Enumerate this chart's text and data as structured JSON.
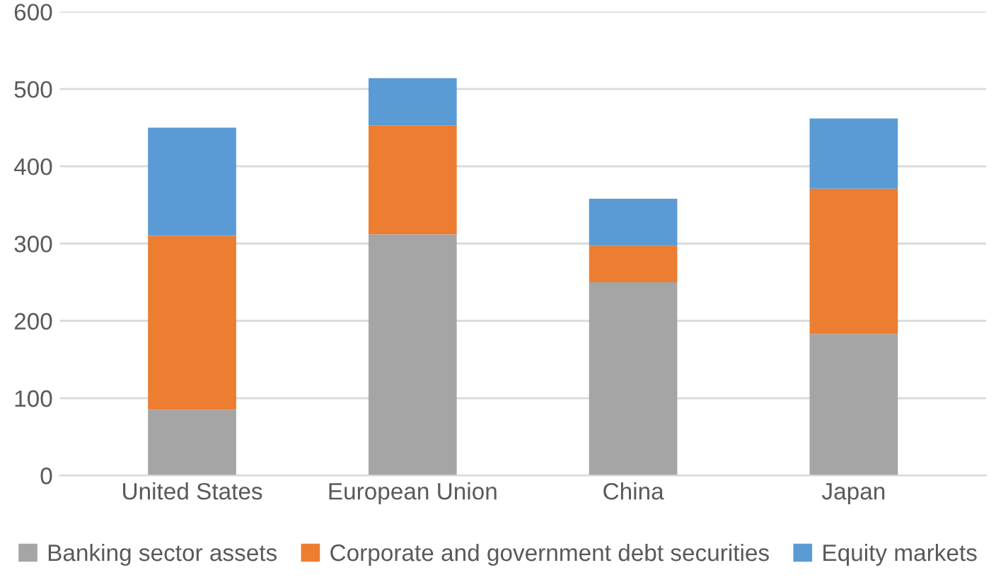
{
  "chart_data": {
    "type": "bar",
    "stacked": true,
    "categories": [
      "United States",
      "European Union",
      "China",
      "Japan"
    ],
    "series": [
      {
        "name": "Banking sector assets",
        "color": "#a5a5a5",
        "values": [
          85,
          312,
          250,
          183
        ]
      },
      {
        "name": "Corporate and government debt securities",
        "color": "#ed7d31",
        "values": [
          225,
          141,
          47,
          188
        ]
      },
      {
        "name": "Equity markets",
        "color": "#5b9bd5",
        "values": [
          140,
          61,
          61,
          91
        ]
      }
    ],
    "ylim": [
      0,
      600
    ],
    "yticks": [
      0,
      100,
      200,
      300,
      400,
      500,
      600
    ],
    "grid": "y",
    "legend": "bottom"
  }
}
